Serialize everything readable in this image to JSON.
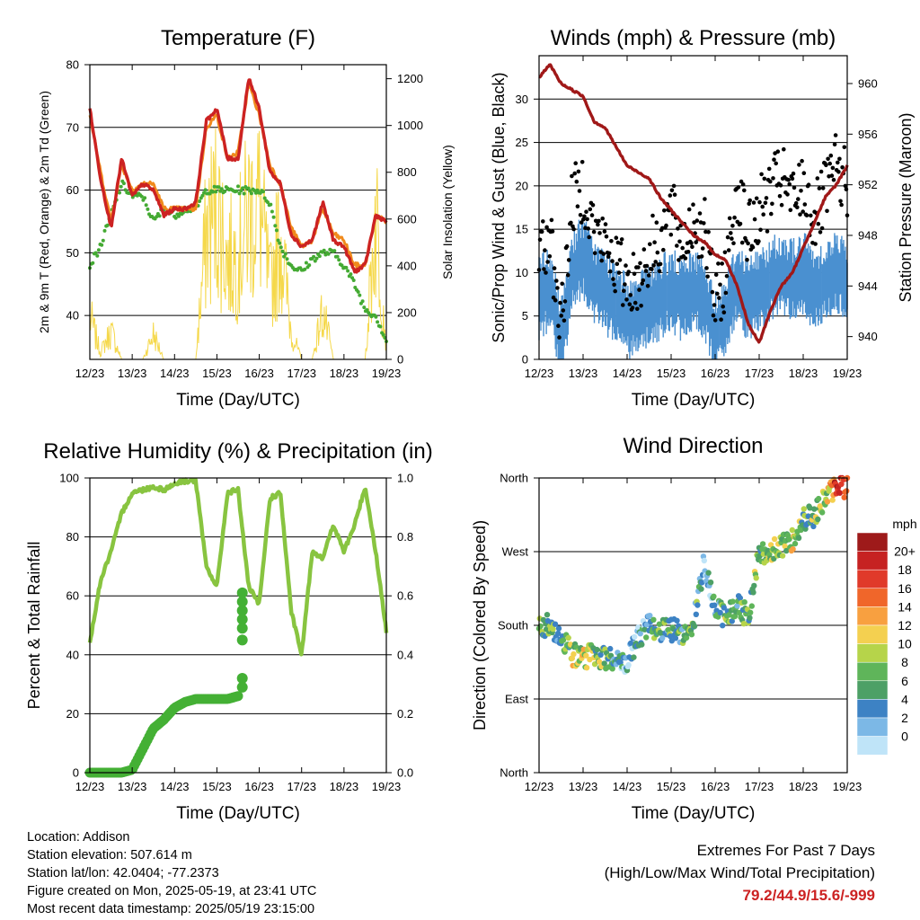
{
  "x_ticks": [
    "12/23",
    "13/23",
    "14/23",
    "15/23",
    "16/23",
    "17/23",
    "18/23",
    "19/23"
  ],
  "x_label": "Time (Day/UTC)",
  "colors": {
    "temp_red": "#cc2222",
    "temp_orange": "#f08a1c",
    "dewpoint_green": "#44aa33",
    "solar_yellow": "#f5d84a",
    "wind_blue": "#4a90d0",
    "gust_black": "#000000",
    "pressure_maroon": "#a01818",
    "humidity_green": "#88c440",
    "precip_green": "#44b035"
  },
  "chart_data": [
    {
      "id": "temperature",
      "type": "line",
      "title": "Temperature (F)",
      "xlabel": "Time (Day/UTC)",
      "ylabel": "2m & 9m T (Red, Orange) & 2m Td (Green)",
      "ylabel_right": "Solar Insolation (Yellow)",
      "ylim": [
        33,
        80
      ],
      "ylim_right": [
        0,
        1260
      ],
      "yticks": [
        40,
        50,
        60,
        70,
        80
      ],
      "yticks_right": [
        0,
        200,
        400,
        600,
        800,
        1000,
        1200
      ],
      "x": [
        0,
        0.25,
        0.5,
        0.75,
        1,
        1.25,
        1.5,
        1.75,
        2,
        2.25,
        2.5,
        2.75,
        3,
        3.25,
        3.5,
        3.75,
        4,
        4.25,
        4.5,
        4.75,
        5,
        5.25,
        5.5,
        5.75,
        6,
        6.25,
        6.5,
        6.75,
        7
      ],
      "series": [
        {
          "key": "t2m",
          "values": [
            73,
            62,
            54,
            65,
            59,
            61,
            60,
            56,
            57,
            57,
            58,
            71,
            73,
            65,
            65,
            78,
            73,
            63,
            61,
            53,
            51,
            52,
            58,
            52,
            51,
            47,
            48,
            56,
            55
          ]
        },
        {
          "key": "t9m",
          "values": [
            72,
            63,
            55,
            64,
            60,
            61,
            61,
            57,
            57,
            57,
            57,
            70,
            72,
            65,
            66,
            77,
            72,
            64,
            61,
            54,
            51,
            52,
            57,
            53,
            52,
            48,
            48,
            56,
            55
          ]
        },
        {
          "key": "td2m",
          "values": [
            48,
            51,
            56,
            61,
            59,
            59,
            55,
            57,
            56,
            57,
            57,
            60,
            60,
            60,
            60,
            60,
            60,
            58,
            51,
            48,
            47,
            49,
            50,
            50,
            48,
            45,
            41,
            40,
            36
          ]
        },
        {
          "key": "solar",
          "values": [
            300,
            50,
            200,
            0,
            0,
            0,
            180,
            0,
            0,
            0,
            0,
            900,
            1100,
            700,
            750,
            1050,
            1100,
            500,
            900,
            200,
            0,
            0,
            350,
            0,
            0,
            0,
            0,
            1050,
            100
          ]
        }
      ]
    },
    {
      "id": "winds",
      "type": "scatter",
      "title": "Winds (mph) & Pressure (mb)",
      "xlabel": "Time (Day/UTC)",
      "ylabel": "Sonic/Prop Wind & Gust (Blue, Black)",
      "ylabel_right": "Station Pressure (Maroon)",
      "ylim": [
        0,
        35
      ],
      "ylim_right": [
        938.2,
        962.2
      ],
      "yticks": [
        0,
        5,
        10,
        15,
        20,
        25,
        30
      ],
      "yticks_right": [
        940,
        944,
        948,
        952,
        956,
        960
      ],
      "x": [
        0,
        0.25,
        0.5,
        0.75,
        1,
        1.25,
        1.5,
        1.75,
        2,
        2.25,
        2.5,
        2.75,
        3,
        3.25,
        3.5,
        3.75,
        4,
        4.25,
        4.5,
        4.75,
        5,
        5.25,
        5.5,
        5.75,
        6,
        6.25,
        6.5,
        6.75,
        7
      ],
      "series": [
        {
          "key": "wind",
          "values": [
            7,
            8,
            2,
            10,
            12,
            9,
            8,
            6,
            5,
            5,
            6,
            7,
            8,
            7,
            8,
            7,
            3,
            5,
            9,
            7,
            8,
            9,
            10,
            9,
            10,
            8,
            9,
            10,
            9
          ]
        },
        {
          "key": "gust",
          "values": [
            12,
            14,
            4,
            18,
            20,
            15,
            13,
            11,
            9,
            9,
            12,
            14,
            17,
            13,
            16,
            15,
            6,
            10,
            20,
            14,
            17,
            19,
            21,
            18,
            20,
            16,
            19,
            22,
            20
          ]
        },
        {
          "key": "pressure",
          "values": [
            960.5,
            961.5,
            960,
            959.5,
            959,
            957,
            956.5,
            955,
            953.5,
            953,
            952.5,
            951,
            950,
            949,
            948,
            947.5,
            946.5,
            946,
            944,
            941,
            939.5,
            942,
            944,
            945,
            947,
            949,
            951,
            952,
            953.5
          ]
        }
      ]
    },
    {
      "id": "humidity",
      "type": "line",
      "title": "Relative Humidity (%) & Precipitation (in)",
      "xlabel": "Time (Day/UTC)",
      "ylabel": "Percent & Total Rainfall",
      "ylim": [
        0,
        100
      ],
      "ylim_right": [
        0,
        1.0
      ],
      "yticks": [
        0,
        20,
        40,
        60,
        80,
        100
      ],
      "yticks_right": [
        "0.0",
        "0.2",
        "0.4",
        "0.6",
        "0.8",
        "1.0"
      ],
      "x": [
        0,
        0.25,
        0.5,
        0.75,
        1,
        1.25,
        1.5,
        1.75,
        2,
        2.25,
        2.5,
        2.75,
        3,
        3.25,
        3.5,
        3.75,
        4,
        4.25,
        4.5,
        4.75,
        5,
        5.25,
        5.5,
        5.75,
        6,
        6.25,
        6.5,
        6.75,
        7
      ],
      "series": [
        {
          "key": "rh",
          "values": [
            44,
            65,
            75,
            88,
            95,
            96,
            97,
            96,
            98,
            99,
            99,
            70,
            63,
            95,
            96,
            63,
            57,
            93,
            95,
            55,
            40,
            75,
            73,
            84,
            75,
            84,
            97,
            75,
            48
          ]
        },
        {
          "key": "precip",
          "values": [
            0,
            0,
            0,
            0,
            0.01,
            0.08,
            0.15,
            0.18,
            0.22,
            0.24,
            0.25,
            0.25,
            0.25,
            0.25,
            0.26,
            null,
            null,
            null,
            null,
            null,
            null,
            null,
            null,
            null,
            null,
            null,
            null,
            null,
            null
          ]
        }
      ]
    },
    {
      "id": "wind_direction",
      "type": "scatter",
      "title": "Wind Direction",
      "xlabel": "Time (Day/UTC)",
      "ylabel": "Direction (Colored By Speed)",
      "ylim": [
        0,
        360
      ],
      "yticks": [
        "North",
        "East",
        "South",
        "West",
        "North"
      ],
      "colorbar_title": "mph",
      "colorbar_labels": [
        "20+",
        "18",
        "16",
        "14",
        "12",
        "10",
        "8",
        "6",
        "4",
        "2",
        "0"
      ],
      "colorbar_colors": [
        "#9e1a1a",
        "#c62222",
        "#e03a2a",
        "#f0662a",
        "#f8a040",
        "#f4d050",
        "#b6d44a",
        "#5fb55a",
        "#4da066",
        "#3d82c4",
        "#7cb8e6",
        "#bfe4f8"
      ],
      "x": [
        0,
        0.25,
        0.5,
        0.75,
        1,
        1.25,
        1.5,
        1.75,
        2,
        2.25,
        2.5,
        2.75,
        3,
        3.25,
        3.5,
        3.75,
        4,
        4.25,
        4.5,
        4.75,
        5,
        5.25,
        5.5,
        5.75,
        6,
        6.25,
        6.5,
        6.75,
        7
      ],
      "series": [
        {
          "key": "direction",
          "values": [
            180,
            180,
            168,
            145,
            140,
            145,
            140,
            138,
            135,
            165,
            180,
            175,
            175,
            170,
            178,
            260,
            200,
            190,
            205,
            190,
            270,
            270,
            275,
            285,
            310,
            315,
            335,
            350,
            350
          ]
        },
        {
          "key": "speed",
          "values": [
            7,
            8,
            6,
            11,
            12,
            9,
            8,
            6,
            4,
            4,
            6,
            7,
            8,
            7,
            8,
            3,
            5,
            9,
            7,
            8,
            9,
            10,
            9,
            12,
            8,
            9,
            10,
            20,
            18
          ]
        }
      ]
    }
  ],
  "station": {
    "location": "Location: Addison",
    "elevation": "Station elevation: 507.614 m",
    "latlon": "Station lat/lon: 42.0404; -77.2373",
    "created": "Figure created on Mon, 2025-05-19, at 23:41 UTC",
    "latest": "Most recent data timestamp: 2025/05/19 23:15:00"
  },
  "extremes": {
    "title": "Extremes For Past 7 Days",
    "subtitle": "(High/Low/Max Wind/Total Precipitation)",
    "values": "79.2/44.9/15.6/-999"
  }
}
